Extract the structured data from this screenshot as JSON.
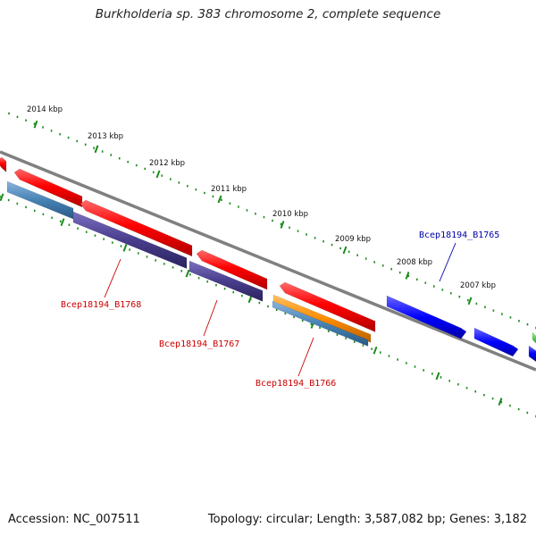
{
  "title": "Burkholderia sp. 383 chromosome 2, complete sequence",
  "footer": {
    "accession": "Accession: NC_007511",
    "summary": "Topology: circular; Length: 3,587,082 bp; Genes: 3,182"
  },
  "colors": {
    "backbone": "#808080",
    "tick": "#1a8a1a",
    "cds": "#ff0000",
    "gene_steelblue": "#4682b4",
    "gene_slate": "#483d8b",
    "gene_orange": "#ff8c00",
    "gene_blue": "#0000ff",
    "label_red": "#cc0000",
    "label_blue": "#0000aa"
  },
  "scale": {
    "labels": [
      "2014 kbp",
      "2013 kbp",
      "2012 kbp",
      "2011 kbp",
      "2010 kbp",
      "2009 kbp",
      "2008 kbp",
      "2007 kbp"
    ]
  },
  "gene_labels": [
    {
      "text": "Bcep18194_B1768",
      "color": "red"
    },
    {
      "text": "Bcep18194_B1767",
      "color": "red"
    },
    {
      "text": "Bcep18194_B1766",
      "color": "red"
    },
    {
      "text": "Bcep18194_B1765",
      "color": "blue"
    }
  ]
}
